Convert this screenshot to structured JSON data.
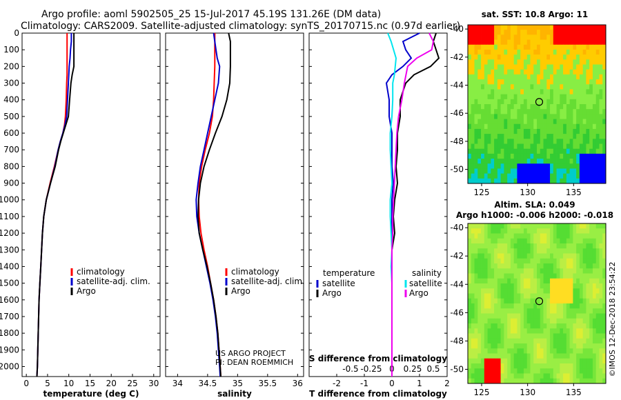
{
  "title_line1": "Argo profile: aoml 5902505_25 15-Jul-2017 45.19S 131.26E (DM data)",
  "title_line2": "Climatology: CARS2009. Satellite-adjusted climatology: synTS_20170715.nc (0.97d earlier)",
  "colors": {
    "climatology": "#ff0000",
    "satellite": "#0000cc",
    "argo": "#000000",
    "satellite_salinity": "#00e5ee",
    "argo_salinity": "#ee00ee"
  },
  "pressure_ticks": [
    "0",
    "100",
    "200",
    "300",
    "400",
    "500",
    "600",
    "700",
    "800",
    "900",
    "1000",
    "1100",
    "1200",
    "1300",
    "1400",
    "1500",
    "1600",
    "1700",
    "1800",
    "1900",
    "2000"
  ],
  "chart_data": [
    {
      "type": "line",
      "panel": "temperature",
      "xlabel": "temperature (deg C)",
      "xlim": [
        -1,
        31.5
      ],
      "ylim": [
        2060,
        0
      ],
      "xticks": [
        "0",
        "5",
        "10",
        "15",
        "20",
        "25",
        "30"
      ],
      "y": [
        0,
        50,
        100,
        150,
        200,
        250,
        300,
        400,
        500,
        550,
        600,
        650,
        700,
        800,
        900,
        1000,
        1100,
        1200,
        1300,
        1400,
        1500,
        1600,
        1700,
        1800,
        1900,
        2000,
        2060
      ],
      "series": [
        {
          "name": "climatology",
          "values": [
            9.6,
            9.6,
            9.6,
            9.6,
            9.6,
            9.6,
            9.5,
            9.4,
            9.2,
            9.0,
            8.6,
            8.0,
            7.5,
            6.6,
            5.6,
            4.7,
            4.1,
            3.8,
            3.6,
            3.4,
            3.2,
            3.0,
            2.9,
            2.8,
            2.7,
            2.6,
            2.5
          ]
        },
        {
          "name": "satellite-adj. clim.",
          "values": [
            10.6,
            10.6,
            10.4,
            10.3,
            10.1,
            10.0,
            9.9,
            9.7,
            9.5,
            9.1,
            8.6,
            8.0,
            7.5,
            6.7,
            5.7,
            4.7,
            4.1,
            3.8,
            3.6,
            3.4,
            3.2,
            3.0,
            2.9,
            2.8,
            2.7,
            2.6,
            2.5
          ]
        },
        {
          "name": "Argo",
          "values": [
            11.2,
            11.2,
            11.2,
            11.2,
            11.2,
            10.8,
            10.5,
            10.2,
            9.9,
            9.3,
            8.7,
            8.1,
            7.6,
            6.8,
            5.7,
            4.7,
            4.1,
            3.8,
            3.6,
            3.4,
            3.2,
            3.0,
            2.9,
            2.8,
            2.7,
            2.6,
            2.5
          ]
        }
      ],
      "legend": [
        "climatology",
        "satellite-adj. clim.",
        "Argo"
      ]
    },
    {
      "type": "line",
      "panel": "salinity",
      "xlabel": "salinity",
      "xlim": [
        33.8,
        36.1
      ],
      "ylim": [
        2060,
        0
      ],
      "xticks": [
        "34",
        "34.5",
        "35",
        "35.5",
        "36"
      ],
      "y": [
        0,
        50,
        100,
        150,
        200,
        300,
        400,
        500,
        600,
        700,
        800,
        900,
        1000,
        1100,
        1200,
        1300,
        1400,
        1500,
        1600,
        1700,
        1800,
        1900,
        2000,
        2060
      ],
      "series": [
        {
          "name": "climatology",
          "values": [
            34.62,
            34.62,
            34.62,
            34.62,
            34.62,
            34.61,
            34.6,
            34.58,
            34.53,
            34.46,
            34.4,
            34.36,
            34.35,
            34.36,
            34.39,
            34.44,
            34.5,
            34.55,
            34.6,
            34.64,
            34.67,
            34.69,
            34.71,
            34.72
          ]
        },
        {
          "name": "satellite-adj. clim.",
          "values": [
            34.6,
            34.62,
            34.64,
            34.66,
            34.7,
            34.68,
            34.62,
            34.56,
            34.5,
            34.44,
            34.38,
            34.34,
            34.31,
            34.32,
            34.36,
            34.42,
            34.48,
            34.54,
            34.59,
            34.63,
            34.66,
            34.68,
            34.7,
            34.71
          ]
        },
        {
          "name": "Argo",
          "values": [
            34.85,
            34.88,
            34.88,
            34.88,
            34.88,
            34.87,
            34.82,
            34.74,
            34.63,
            34.53,
            34.44,
            34.38,
            34.35,
            34.34,
            34.36,
            34.42,
            34.49,
            34.55,
            34.6,
            34.64,
            34.67,
            34.69,
            34.71,
            34.72
          ]
        }
      ],
      "legend": [
        "climatology",
        "satellite-adj. clim.",
        "Argo"
      ]
    },
    {
      "type": "line",
      "panel": "difference",
      "xlabel_bottom": "T difference from climatology",
      "xlabel_top": "S difference from climatology",
      "xlim": [
        -3,
        2
      ],
      "ylim": [
        2060,
        0
      ],
      "xticks": [
        "-2",
        "-1",
        "0",
        "1",
        "2"
      ],
      "sticks": [
        "-0.5",
        "-0.25",
        "0",
        "0.25",
        "0.5"
      ],
      "y": [
        0,
        50,
        100,
        150,
        200,
        250,
        300,
        400,
        500,
        600,
        700,
        800,
        900,
        1000,
        1100,
        1200,
        1300,
        1400,
        1500,
        1600,
        1700,
        1800,
        1900,
        2000,
        2060
      ],
      "series": [
        {
          "name": "satellite",
          "group": "temperature",
          "values": [
            1.0,
            0.4,
            0.5,
            0.7,
            0.4,
            0.0,
            -0.2,
            -0.1,
            -0.1,
            0.0,
            0.0,
            0.0,
            0.05,
            0.0,
            0.0,
            0.0,
            0.0,
            0.0,
            0.0,
            0.0,
            0.0,
            0.0,
            0.0,
            0.0,
            0.0
          ]
        },
        {
          "name": "Argo",
          "group": "temperature",
          "values": [
            1.6,
            1.5,
            1.6,
            1.7,
            1.4,
            0.8,
            0.5,
            0.3,
            0.3,
            0.2,
            0.2,
            0.15,
            0.2,
            0.1,
            0.05,
            0.1,
            0.0,
            0.0,
            0.0,
            0.0,
            0.0,
            0.0,
            0.0,
            0.0,
            0.0
          ]
        },
        {
          "name": "satellite",
          "group": "salinity",
          "values": [
            -0.05,
            -0.01,
            0.02,
            0.05,
            0.04,
            0.03,
            0.01,
            0.01,
            0.0,
            -0.02,
            -0.02,
            -0.01,
            0.0,
            -0.02,
            -0.02,
            -0.01,
            0.0,
            -0.01,
            0.0,
            0.0,
            0.0,
            0.0,
            0.0,
            0.0,
            0.0
          ]
        },
        {
          "name": "Argo",
          "group": "salinity",
          "values": [
            0.45,
            0.5,
            0.48,
            0.3,
            0.19,
            0.17,
            0.15,
            0.12,
            0.08,
            0.06,
            0.05,
            0.04,
            0.03,
            0.02,
            0.01,
            0.01,
            0.0,
            0.0,
            0.0,
            0.0,
            0.0,
            0.0,
            0.0,
            0.0,
            0.0
          ]
        }
      ],
      "legend_temperature_title": "temperature",
      "legend_salinity_title": "salinity",
      "legend_temperature": [
        "satellite",
        "Argo"
      ],
      "legend_salinity": [
        "satellite",
        "Argo"
      ]
    },
    {
      "type": "heatmap",
      "panel": "sst-map",
      "title": "sat. SST: 10.8  Argo: 11",
      "xticks": [
        "125",
        "130",
        "135"
      ],
      "yticks": [
        "-40",
        "-42",
        "-44",
        "-46",
        "-48",
        "-50"
      ],
      "xlim": [
        123.5,
        138.5
      ],
      "ylim": [
        -51,
        -39.7
      ],
      "marker": {
        "lon": 131.26,
        "lat": -45.19
      }
    },
    {
      "type": "heatmap",
      "panel": "sla-map",
      "title_line1": "Altim. SLA: 0.049",
      "title_line2": "Argo h1000: -0.006  h2000: -0.018",
      "xticks": [
        "125",
        "130",
        "135"
      ],
      "yticks": [
        "-40",
        "-42",
        "-44",
        "-46",
        "-48",
        "-50"
      ],
      "xlim": [
        123.5,
        138.5
      ],
      "ylim": [
        -51,
        -39.7
      ],
      "marker": {
        "lon": 131.26,
        "lat": -45.19
      }
    }
  ],
  "credit_line1": "US ARGO PROJECT",
  "credit_line2": "PI: DEAN ROEMMICH",
  "stamp": "©IMOS 12-Dec-2018 23:54:22"
}
